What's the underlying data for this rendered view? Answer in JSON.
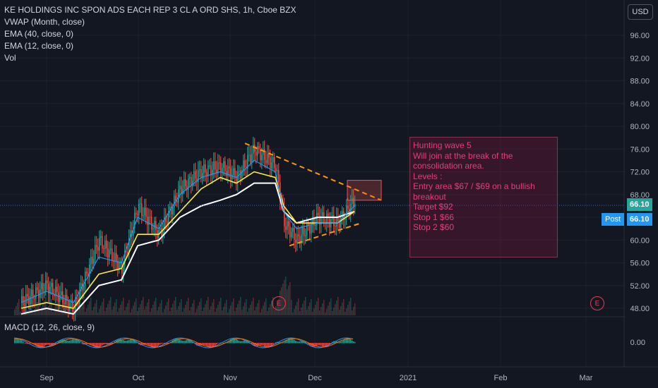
{
  "chart_data": {
    "type": "line",
    "title": "KE HOLDINGS INC SPON ADS EACH REP 3 CL A ORD SHS, 1h, Cboe BZX",
    "indicators": [
      "VWAP (Month, close)",
      "EMA (40, close, 0)",
      "EMA (12, close, 0)",
      "Vol"
    ],
    "macd_label": "MACD (12, 26, close, 9)",
    "currency": "USD",
    "ylim": [
      46,
      100
    ],
    "y_ticks": [
      "96.00",
      "92.00",
      "88.00",
      "84.00",
      "80.00",
      "76.00",
      "72.00",
      "68.00",
      "64.00",
      "60.00",
      "56.00",
      "52.00",
      "48.00"
    ],
    "macd_tick": "0.00",
    "x_ticks": [
      "Sep",
      "Oct",
      "Nov",
      "Dec",
      "2021",
      "Feb",
      "Mar"
    ],
    "last_price": "66.10",
    "post_label": "Post",
    "post_price": "66.10",
    "earnings_marker": "E",
    "price_series": {
      "x": [
        "Aug 25",
        "Sep 1",
        "Sep 8",
        "Sep 15",
        "Sep 22",
        "Sep 29",
        "Oct 6",
        "Oct 13",
        "Oct 20",
        "Oct 27",
        "Nov 3",
        "Nov 10",
        "Nov 17",
        "Nov 20",
        "Nov 24",
        "Dec 1",
        "Dec 8",
        "Dec 11"
      ],
      "values": [
        49,
        52,
        48,
        60,
        55,
        66,
        61,
        69,
        72,
        73,
        71,
        76,
        73,
        63,
        60,
        64,
        63,
        67
      ]
    },
    "ema12": [
      49,
      51,
      49,
      57,
      56,
      64,
      62,
      68,
      71,
      72,
      71,
      74,
      72,
      65,
      62,
      63,
      63,
      66
    ],
    "ema40": [
      48,
      49,
      48,
      54,
      55,
      61,
      61,
      65,
      69,
      71,
      70,
      72,
      71,
      66,
      63,
      63,
      63,
      65
    ],
    "vwap": [
      47,
      48,
      47,
      52,
      53,
      59,
      60,
      64,
      66,
      67,
      68,
      70,
      70,
      65,
      63,
      64,
      64,
      65
    ],
    "triangle_upper": [
      [
        77,
        "Nov 9"
      ],
      [
        67,
        "Dec 21"
      ]
    ],
    "triangle_lower": [
      [
        59,
        "Nov 22"
      ],
      [
        63,
        "Dec 16"
      ]
    ],
    "note": {
      "lines": [
        "Hunting wave 5",
        "",
        "Will join at the break of the consolidation area.",
        "",
        "Levels :",
        "Entry area $67 / $69 on a bullish breakout",
        "Target $92",
        "Stop 1 $66",
        "Stop 2 $60"
      ]
    }
  }
}
